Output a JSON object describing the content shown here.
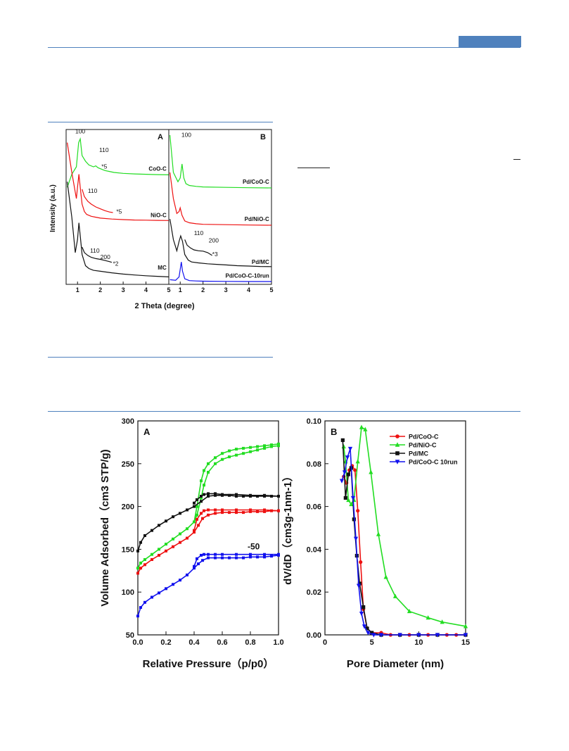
{
  "colors": {
    "rule": "#4f81bd",
    "green": "#22dd22",
    "red": "#ee1111",
    "black": "#111111",
    "blue": "#1111ee"
  },
  "chart_data": [
    {
      "id": "xrd-A",
      "type": "line",
      "panel_label": "A",
      "xlabel": "2 Theta (degree)",
      "ylabel": "Intensity (a.u.)",
      "xlim": [
        0.5,
        5
      ],
      "xticks": [
        "1",
        "2",
        "3",
        "4",
        "5"
      ],
      "series": [
        {
          "name": "CoO-C",
          "color": "green",
          "x": [
            0.55,
            0.75,
            0.95,
            1.05,
            1.12,
            1.2,
            1.35,
            1.5,
            1.7,
            1.8,
            1.9,
            2.0,
            2.2,
            2.4,
            2.6,
            3.0,
            3.5,
            4.0,
            4.5,
            5.0
          ],
          "y": [
            5.2,
            5.9,
            6.3,
            7.6,
            7.8,
            6.9,
            6.6,
            6.4,
            6.3,
            6.35,
            6.25,
            6.2,
            6.1,
            6.05,
            6.0,
            5.95,
            5.92,
            5.9,
            5.88,
            5.87
          ]
        },
        {
          "name": "NiO-C",
          "color": "red",
          "x": [
            0.55,
            0.75,
            0.95,
            1.0,
            1.06,
            1.12,
            1.2,
            1.3,
            1.4,
            1.6,
            1.8,
            2.0,
            2.5,
            3.0,
            3.5,
            4.0,
            4.5,
            5.0
          ],
          "y": [
            7.6,
            6.0,
            4.6,
            5.2,
            5.9,
            5.2,
            4.3,
            3.9,
            3.75,
            3.65,
            3.6,
            3.55,
            3.5,
            3.47,
            3.45,
            3.44,
            3.43,
            3.42
          ]
        },
        {
          "name": "NiO-C *5",
          "color": "red",
          "x": [
            1.2,
            1.3,
            1.45,
            1.6,
            1.8,
            2.0,
            2.2,
            2.4,
            2.55
          ],
          "y": [
            5.1,
            4.7,
            4.45,
            4.3,
            4.15,
            4.05,
            3.95,
            3.88,
            3.85
          ]
        },
        {
          "name": "MC",
          "color": "black",
          "x": [
            0.55,
            0.75,
            0.9,
            1.0,
            1.06,
            1.12,
            1.2,
            1.35,
            1.5,
            1.7,
            2.0,
            2.5,
            3.0,
            3.5,
            4.0,
            4.5,
            5.0
          ],
          "y": [
            5.5,
            3.6,
            1.7,
            2.4,
            3.3,
            2.6,
            1.6,
            1.0,
            0.85,
            0.75,
            0.7,
            0.62,
            0.55,
            0.5,
            0.46,
            0.43,
            0.4
          ]
        },
        {
          "name": "MC *2",
          "color": "black",
          "x": [
            1.2,
            1.3,
            1.45,
            1.6,
            1.8,
            2.0,
            2.2,
            2.4,
            2.5
          ],
          "y": [
            2.0,
            1.7,
            1.55,
            1.45,
            1.38,
            1.34,
            1.28,
            1.22,
            1.18
          ]
        }
      ],
      "annotations": [
        "100",
        "110",
        "*5",
        "CoO-C",
        "110",
        "*5",
        "NiO-C",
        "110",
        "200",
        "*2",
        "MC"
      ]
    },
    {
      "id": "xrd-B",
      "type": "line",
      "panel_label": "B",
      "xlim": [
        0.5,
        5
      ],
      "xticks": [
        "1",
        "2",
        "3",
        "4",
        "5"
      ],
      "series": [
        {
          "name": "Pd/CoO-C",
          "color": "green",
          "x": [
            0.55,
            0.7,
            0.9,
            1.0,
            1.08,
            1.16,
            1.25,
            1.4,
            1.7,
            2.0,
            3.0,
            4.0,
            5.0
          ],
          "y": [
            8.0,
            6.0,
            5.5,
            5.7,
            6.45,
            5.7,
            5.4,
            5.3,
            5.25,
            5.22,
            5.2,
            5.18,
            5.17
          ]
        },
        {
          "name": "Pd/NiO-C",
          "color": "red",
          "x": [
            0.55,
            0.7,
            0.85,
            0.95,
            1.0,
            1.08,
            1.2,
            1.4,
            1.7,
            2.0,
            3.0,
            4.0,
            5.0
          ],
          "y": [
            6.0,
            4.6,
            3.8,
            3.9,
            4.1,
            3.7,
            3.4,
            3.3,
            3.25,
            3.22,
            3.2,
            3.18,
            3.17
          ]
        },
        {
          "name": "Pd/MC",
          "color": "black",
          "x": [
            0.55,
            0.7,
            0.85,
            0.95,
            1.02,
            1.1,
            1.2,
            1.35,
            1.5,
            1.8,
            2.2,
            2.6,
            3.0,
            3.5,
            4.0,
            4.5,
            5.0
          ],
          "y": [
            3.5,
            2.4,
            1.8,
            2.3,
            2.6,
            2.3,
            1.6,
            1.3,
            1.2,
            1.15,
            1.1,
            1.07,
            1.04,
            1.0,
            0.98,
            0.96,
            0.95
          ]
        },
        {
          "name": "Pd/MC *3",
          "color": "black",
          "x": [
            1.2,
            1.3,
            1.45,
            1.6,
            1.8,
            2.0,
            2.2,
            2.4
          ],
          "y": [
            2.4,
            2.1,
            1.95,
            1.85,
            1.8,
            1.78,
            1.7,
            1.55
          ]
        },
        {
          "name": "Pd/CoO-C-10run",
          "color": "blue",
          "x": [
            0.55,
            0.8,
            0.95,
            1.0,
            1.05,
            1.1,
            1.2,
            1.4,
            1.7,
            2.0,
            3.0,
            4.0,
            5.0
          ],
          "y": [
            0.25,
            0.22,
            0.4,
            0.8,
            1.2,
            0.7,
            0.3,
            0.2,
            0.18,
            0.17,
            0.16,
            0.15,
            0.15
          ]
        }
      ],
      "annotations": [
        "100",
        "Pd/CoO-C",
        "Pd/NiO-C",
        "110",
        "200",
        "*3",
        "Pd/MC",
        "Pd/CoO-C-10run"
      ]
    },
    {
      "id": "bet-A",
      "type": "line",
      "panel_label": "A",
      "xlabel": "Relative Pressure（p/p0）",
      "ylabel": "Volume Adsorbed（cm3 STP/g)",
      "xlim": [
        0,
        1.0
      ],
      "ylim": [
        50,
        300
      ],
      "xticks": [
        "0.0",
        "0.2",
        "0.4",
        "0.6",
        "0.8",
        "1.0"
      ],
      "yticks": [
        "50",
        "100",
        "150",
        "200",
        "250",
        "300"
      ],
      "annotation": "-50",
      "series": [
        {
          "name": "Pd/NiO-C ads",
          "color": "green",
          "x": [
            0.0,
            0.02,
            0.05,
            0.1,
            0.15,
            0.2,
            0.25,
            0.3,
            0.35,
            0.4,
            0.42,
            0.45,
            0.47,
            0.5,
            0.55,
            0.6,
            0.65,
            0.7,
            0.75,
            0.8,
            0.85,
            0.9,
            0.95,
            1.0
          ],
          "y": [
            128,
            134,
            138,
            144,
            150,
            156,
            162,
            168,
            174,
            182,
            190,
            210,
            225,
            240,
            250,
            255,
            258,
            260,
            262,
            264,
            266,
            268,
            270,
            271
          ]
        },
        {
          "name": "Pd/NiO-C des",
          "color": "green",
          "x": [
            1.0,
            0.95,
            0.9,
            0.85,
            0.8,
            0.75,
            0.7,
            0.65,
            0.6,
            0.55,
            0.5,
            0.47,
            0.45,
            0.42,
            0.4
          ],
          "y": [
            273,
            272,
            271,
            270,
            269,
            268,
            267,
            265,
            262,
            257,
            250,
            242,
            230,
            200,
            182
          ]
        },
        {
          "name": "Pd/MC ads",
          "color": "black",
          "x": [
            0.0,
            0.02,
            0.05,
            0.1,
            0.15,
            0.2,
            0.25,
            0.3,
            0.35,
            0.4,
            0.45,
            0.5,
            0.55,
            0.6,
            0.65,
            0.7,
            0.75,
            0.8,
            0.85,
            0.9,
            0.95,
            1.0
          ],
          "y": [
            148,
            158,
            166,
            172,
            178,
            183,
            188,
            192,
            196,
            200,
            206,
            212,
            213,
            213,
            213,
            212,
            212,
            212,
            212,
            212,
            212,
            212
          ]
        },
        {
          "name": "Pd/MC des",
          "color": "black",
          "x": [
            1.0,
            0.9,
            0.8,
            0.7,
            0.6,
            0.55,
            0.5,
            0.47,
            0.45,
            0.42,
            0.4
          ],
          "y": [
            212,
            213,
            213,
            214,
            214,
            215,
            215,
            214,
            212,
            208,
            204
          ]
        },
        {
          "name": "Pd/CoO-C ads",
          "color": "red",
          "x": [
            0.0,
            0.02,
            0.05,
            0.1,
            0.15,
            0.2,
            0.25,
            0.3,
            0.35,
            0.4,
            0.43,
            0.46,
            0.5,
            0.55,
            0.6,
            0.65,
            0.7,
            0.75,
            0.8,
            0.85,
            0.9,
            0.95,
            1.0
          ],
          "y": [
            122,
            128,
            132,
            138,
            143,
            148,
            153,
            158,
            163,
            170,
            178,
            186,
            190,
            192,
            193,
            193,
            193,
            193,
            194,
            194,
            194,
            195,
            195
          ]
        },
        {
          "name": "Pd/CoO-C des",
          "color": "red",
          "x": [
            1.0,
            0.9,
            0.8,
            0.7,
            0.6,
            0.55,
            0.5,
            0.47,
            0.45,
            0.42,
            0.4
          ],
          "y": [
            195,
            196,
            196,
            196,
            196,
            196,
            196,
            195,
            192,
            185,
            172
          ]
        },
        {
          "name": "Pd/CoO-C 10run ads",
          "color": "blue",
          "x": [
            0.0,
            0.02,
            0.05,
            0.1,
            0.15,
            0.2,
            0.25,
            0.3,
            0.35,
            0.4,
            0.43,
            0.46,
            0.5,
            0.55,
            0.6,
            0.65,
            0.7,
            0.75,
            0.8,
            0.85,
            0.9,
            0.95,
            1.0
          ],
          "y": [
            72,
            82,
            88,
            94,
            99,
            104,
            109,
            114,
            120,
            128,
            133,
            137,
            140,
            140,
            140,
            140,
            140,
            140,
            141,
            141,
            141,
            142,
            143
          ]
        },
        {
          "name": "Pd/CoO-C 10run des",
          "color": "blue",
          "x": [
            1.0,
            0.9,
            0.8,
            0.7,
            0.6,
            0.55,
            0.5,
            0.47,
            0.45,
            0.42,
            0.4
          ],
          "y": [
            144,
            144,
            144,
            144,
            144,
            144,
            144,
            144,
            143,
            139,
            130
          ]
        }
      ]
    },
    {
      "id": "bet-B",
      "type": "line",
      "panel_label": "B",
      "xlabel": "Pore Diameter (nm)",
      "ylabel": "dV/dD（cm3g-1nm-1）",
      "xlim": [
        0,
        15
      ],
      "ylim": [
        0,
        0.1
      ],
      "xticks": [
        "0",
        "5",
        "10",
        "15"
      ],
      "yticks": [
        "0.00",
        "0.02",
        "0.04",
        "0.06",
        "0.08",
        "0.10"
      ],
      "legend_position": "top-right",
      "legend": [
        "Pd/CoO-C",
        "Pd/NiO-C",
        "Pd/MC",
        "Pd/CoO-C 10run"
      ],
      "series": [
        {
          "name": "Pd/CoO-C",
          "color": "red",
          "marker": "circle",
          "x": [
            2.0,
            2.3,
            2.6,
            2.9,
            3.2,
            3.5,
            3.8,
            4.1,
            4.5,
            5.0,
            6.0,
            7.0,
            8.0,
            9.0,
            10.0,
            11.0,
            12.0,
            13.0,
            14.0,
            15.0
          ],
          "y": [
            0.074,
            0.071,
            0.077,
            0.079,
            0.077,
            0.058,
            0.034,
            0.012,
            0.003,
            0.001,
            0.001,
            0.0,
            0.0,
            0.0,
            0.0,
            0.0,
            0.0,
            0.0,
            0.0,
            0.0
          ]
        },
        {
          "name": "Pd/NiO-C",
          "color": "green",
          "marker": "triangle-up",
          "x": [
            2.0,
            2.2,
            2.5,
            2.8,
            3.1,
            3.5,
            3.9,
            4.3,
            4.9,
            5.7,
            6.5,
            7.5,
            9.0,
            11.0,
            12.5,
            15.0
          ],
          "y": [
            0.088,
            0.081,
            0.063,
            0.061,
            0.063,
            0.081,
            0.097,
            0.096,
            0.076,
            0.047,
            0.027,
            0.018,
            0.011,
            0.008,
            0.006,
            0.004
          ]
        },
        {
          "name": "Pd/MC",
          "color": "black",
          "marker": "square",
          "x": [
            1.9,
            2.2,
            2.5,
            2.8,
            3.1,
            3.4,
            3.7,
            4.1,
            4.5,
            5.0,
            6.0,
            8.0,
            10.0,
            12.0,
            15.0
          ],
          "y": [
            0.091,
            0.064,
            0.075,
            0.078,
            0.054,
            0.037,
            0.024,
            0.013,
            0.003,
            0.001,
            0.0,
            0.0,
            0.0,
            0.0,
            0.0
          ]
        },
        {
          "name": "Pd/CoO-C 10run",
          "color": "blue",
          "marker": "triangle-down",
          "x": [
            1.8,
            2.1,
            2.4,
            2.7,
            3.0,
            3.3,
            3.6,
            3.9,
            4.2,
            4.6,
            5.2,
            6.0,
            8.0,
            10.0,
            12.0,
            15.0
          ],
          "y": [
            0.072,
            0.076,
            0.083,
            0.087,
            0.064,
            0.045,
            0.023,
            0.01,
            0.004,
            0.001,
            0.0,
            0.0,
            0.0,
            0.0,
            0.0,
            0.0
          ]
        }
      ]
    }
  ]
}
